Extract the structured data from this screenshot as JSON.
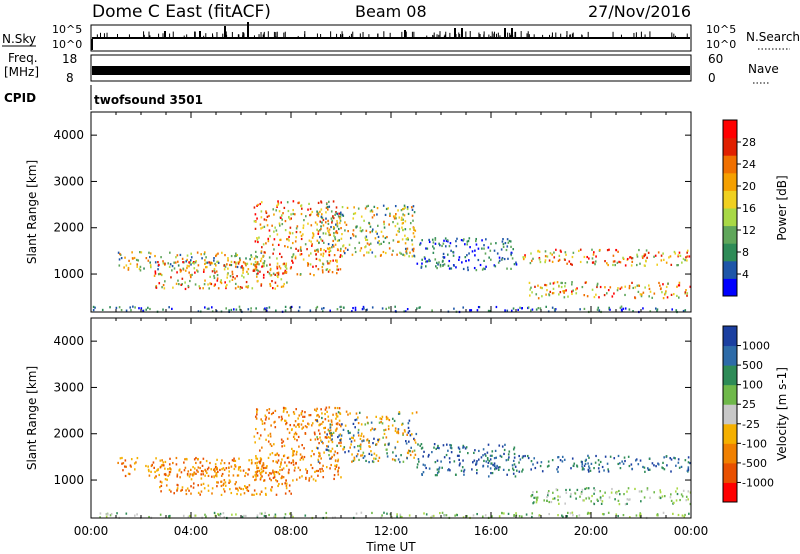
{
  "header": {
    "station": "Dome C East (fitACF)",
    "beam": "Beam 08",
    "date": "27/Nov/2016"
  },
  "nsky_panel": {
    "label": "N.Sky",
    "ytick_top": "10^5",
    "ytick_bottom": "10^0",
    "right_label": "N.Search",
    "right_tick_top": "10^5",
    "right_tick_bottom": "10^0"
  },
  "freq_panel": {
    "label_line1": "Freq.",
    "label_line2": "[MHz]",
    "ytick_top": "18",
    "ytick_bottom": "8",
    "right_label": "Nave",
    "right_tick_top": "60",
    "right_tick_bottom": "0"
  },
  "cpid_panel": {
    "label": "CPID",
    "value": "twofsound 3501"
  },
  "colors": {
    "power": [
      "#0000ff",
      "#1d55a8",
      "#2e8b57",
      "#5fa65a",
      "#a8d845",
      "#f0d020",
      "#f5a000",
      "#f07000",
      "#e02000",
      "#ff0000"
    ],
    "velocity_pos": [
      "#1b3fa0",
      "#2d6ba8",
      "#2e8b57",
      "#6fb84a",
      "#c8c8c8"
    ],
    "velocity_neg": [
      "#c8c8c8",
      "#f5b000",
      "#f08000",
      "#e85000",
      "#ff0000"
    ]
  },
  "chart_data": [
    {
      "type": "heatmap",
      "title": "",
      "xlabel": "Time UT",
      "ylabel": "Slant Range [km]",
      "xticks": [
        "00:00",
        "04:00",
        "08:00",
        "12:00",
        "16:00",
        "20:00",
        "00:00"
      ],
      "yticks": [
        "1000",
        "2000",
        "3000",
        "4000"
      ],
      "ylim": [
        180,
        4500
      ],
      "colorbar": {
        "label": "Power [dB]",
        "ticks": [
          "4",
          "8",
          "12",
          "16",
          "20",
          "24",
          "28"
        ],
        "range": [
          0,
          30
        ]
      },
      "scatter_regions": [
        {
          "t_start": 1.0,
          "t_end": 7.0,
          "r_start": 1100,
          "r_end": 1500,
          "level": "mid"
        },
        {
          "t_start": 2.5,
          "t_end": 8.0,
          "r_start": 700,
          "r_end": 1300,
          "level": "high"
        },
        {
          "t_start": 6.5,
          "t_end": 10.0,
          "r_start": 1000,
          "r_end": 2600,
          "level": "high"
        },
        {
          "t_start": 9.0,
          "t_end": 13.0,
          "r_start": 1400,
          "r_end": 2500,
          "level": "mid"
        },
        {
          "t_start": 13.0,
          "t_end": 17.0,
          "r_start": 1100,
          "r_end": 1800,
          "level": "low"
        },
        {
          "t_start": 17.0,
          "t_end": 24.0,
          "r_start": 1200,
          "r_end": 1550,
          "level": "high"
        },
        {
          "t_start": 17.5,
          "t_end": 24.0,
          "r_start": 500,
          "r_end": 850,
          "level": "high"
        },
        {
          "t_start": 0.0,
          "t_end": 24.0,
          "r_start": 180,
          "r_end": 320,
          "level": "low"
        }
      ]
    },
    {
      "type": "heatmap",
      "title": "",
      "xlabel": "Time UT",
      "ylabel": "Slant Range [km]",
      "xticks": [
        "00:00",
        "04:00",
        "08:00",
        "12:00",
        "16:00",
        "20:00",
        "00:00"
      ],
      "yticks": [
        "1000",
        "2000",
        "3000",
        "4000"
      ],
      "ylim": [
        180,
        4500
      ],
      "colorbar": {
        "label": "Velocity [m s-1]",
        "ticks": [
          "1000",
          "500",
          "100",
          "25",
          "-25",
          "-100",
          "-500",
          "-1000"
        ],
        "range": [
          -1000,
          1000
        ]
      },
      "scatter_regions": [
        {
          "t_start": 1.0,
          "t_end": 7.0,
          "r_start": 1100,
          "r_end": 1500,
          "level": "neg"
        },
        {
          "t_start": 2.5,
          "t_end": 8.0,
          "r_start": 700,
          "r_end": 1300,
          "level": "neg"
        },
        {
          "t_start": 6.5,
          "t_end": 10.0,
          "r_start": 1000,
          "r_end": 2600,
          "level": "neg"
        },
        {
          "t_start": 9.0,
          "t_end": 13.0,
          "r_start": 1400,
          "r_end": 2500,
          "level": "mixed"
        },
        {
          "t_start": 13.0,
          "t_end": 17.0,
          "r_start": 1100,
          "r_end": 1800,
          "level": "pos"
        },
        {
          "t_start": 17.0,
          "t_end": 24.0,
          "r_start": 1200,
          "r_end": 1550,
          "level": "pos"
        },
        {
          "t_start": 17.5,
          "t_end": 24.0,
          "r_start": 500,
          "r_end": 850,
          "level": "green"
        },
        {
          "t_start": 0.0,
          "t_end": 24.0,
          "r_start": 180,
          "r_end": 320,
          "level": "green"
        }
      ]
    }
  ]
}
